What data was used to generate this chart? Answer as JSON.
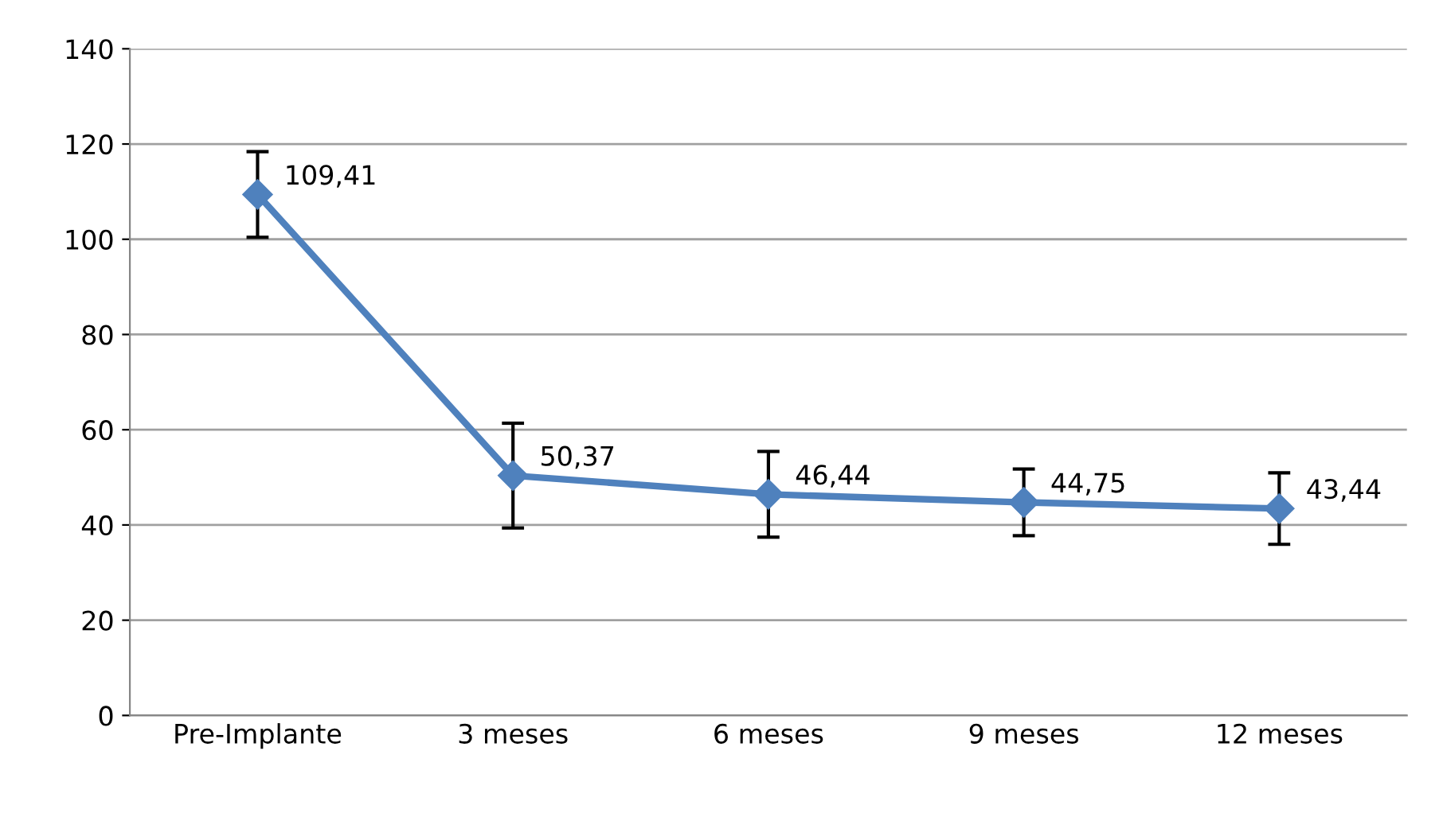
{
  "chart_data": {
    "type": "line",
    "categories": [
      "Pre-Implante",
      "3 meses",
      "6 meses",
      "9 meses",
      "12 meses"
    ],
    "series": [
      {
        "color": "#4f81bd",
        "values": [
          109.41,
          50.37,
          46.44,
          44.75,
          43.44
        ],
        "errors": [
          9,
          11,
          9,
          7,
          7.5
        ],
        "value_labels": [
          "109,41",
          "50,37",
          "46,44",
          "44,75",
          "43,44"
        ]
      }
    ],
    "ylim": [
      0,
      140
    ],
    "yticks": [
      0,
      20,
      40,
      60,
      80,
      100,
      120,
      140
    ],
    "grid": "y",
    "marker": "diamond",
    "line_style": "solid"
  }
}
